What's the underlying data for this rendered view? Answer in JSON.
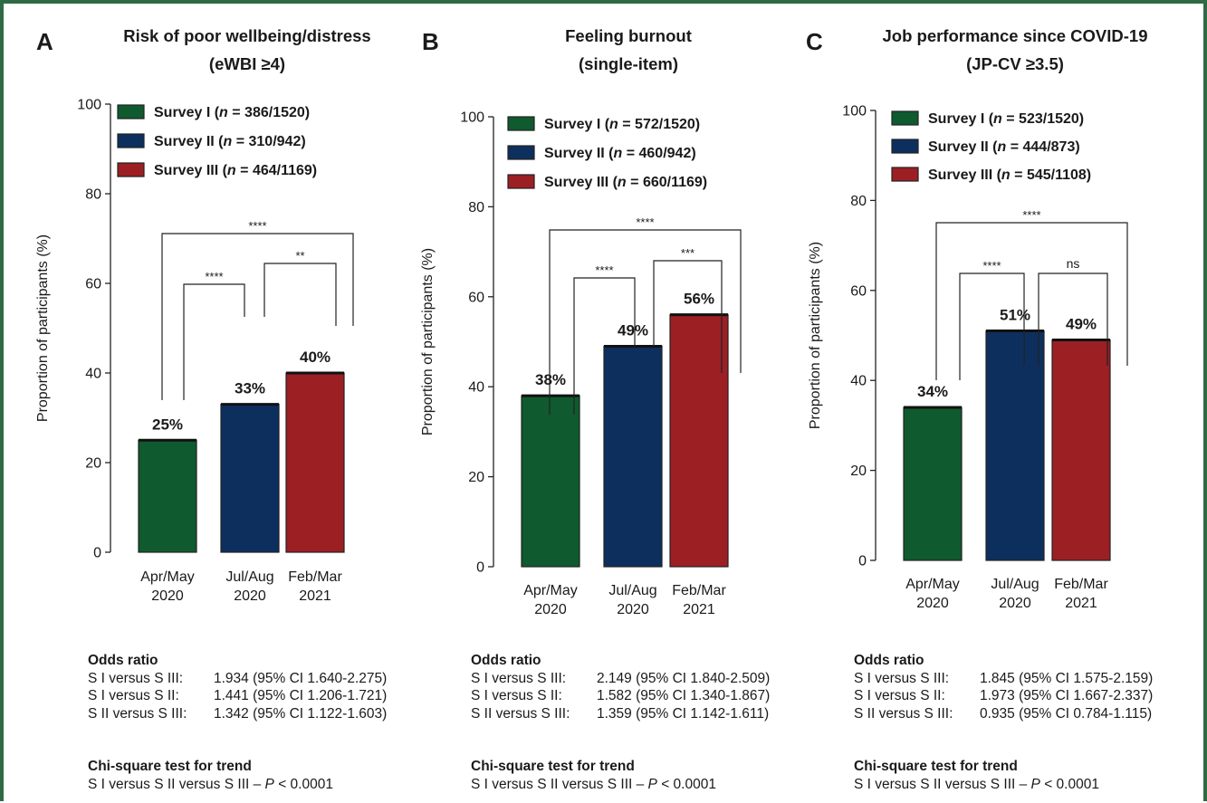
{
  "colors": {
    "survey1": "#0f5a2e",
    "survey2": "#0d2f5e",
    "survey3": "#9c1f24",
    "frame": "#2e6b45"
  },
  "panels": [
    {
      "letter": "A",
      "title_line1": "Risk of poor wellbeing/distress",
      "title_line2": "(eWBI ≥4)",
      "legend": [
        {
          "prefix": "Survey I (",
          "n": "n",
          "suffix": " = 386/1520)"
        },
        {
          "prefix": "Survey II (",
          "n": "n",
          "suffix": " = 310/942)"
        },
        {
          "prefix": "Survey III (",
          "n": "n",
          "suffix": " = 464/1169)"
        }
      ],
      "sig": [
        "****",
        "****",
        "**"
      ],
      "odds_title": "Odds ratio",
      "odds": [
        {
          "cmp": "S I versus S III:",
          "val": "1.934 (95% CI 1.640-2.275)"
        },
        {
          "cmp": "S I versus S II:",
          "val": "1.441 (95% CI 1.206-1.721)"
        },
        {
          "cmp": "S II versus S III:",
          "val": "1.342 (95% CI 1.122-1.603)"
        }
      ],
      "chi_title": "Chi-square test for trend",
      "chi_prefix": "S I versus S II versus S III – ",
      "chi_p": "P",
      "chi_suffix": " < 0.0001"
    },
    {
      "letter": "B",
      "title_line1": "Feeling burnout",
      "title_line2": "(single-item)",
      "legend": [
        {
          "prefix": "Survey I (",
          "n": "n",
          "suffix": " = 572/1520)"
        },
        {
          "prefix": "Survey II (",
          "n": "n",
          "suffix": " = 460/942)"
        },
        {
          "prefix": "Survey III (",
          "n": "n",
          "suffix": " = 660/1169)"
        }
      ],
      "sig": [
        "****",
        "****",
        "***"
      ],
      "odds_title": "Odds ratio",
      "odds": [
        {
          "cmp": "S I versus S III:",
          "val": "2.149 (95% CI 1.840-2.509)"
        },
        {
          "cmp": "S I versus S II:",
          "val": "1.582 (95% CI 1.340-1.867)"
        },
        {
          "cmp": "S II versus S III:",
          "val": "1.359 (95% CI 1.142-1.611)"
        }
      ],
      "chi_title": "Chi-square test for trend",
      "chi_prefix": "S I versus S II versus S III – ",
      "chi_p": "P",
      "chi_suffix": " < 0.0001"
    },
    {
      "letter": "C",
      "title_line1": "Job performance since COVID-19",
      "title_line2": "(JP-CV ≥3.5)",
      "legend": [
        {
          "prefix": "Survey I (",
          "n": "n",
          "suffix": " = 523/1520)"
        },
        {
          "prefix": "Survey II (",
          "n": "n",
          "suffix": " = 444/873)"
        },
        {
          "prefix": "Survey III (",
          "n": "n",
          "suffix": " = 545/1108)"
        }
      ],
      "sig": [
        "****",
        "****",
        "ns"
      ],
      "odds_title": "Odds ratio",
      "odds": [
        {
          "cmp": "S I versus S III:",
          "val": "1.845 (95% CI 1.575-2.159)"
        },
        {
          "cmp": "S I versus S II:",
          "val": "1.973 (95% CI 1.667-2.337)"
        },
        {
          "cmp": "S II versus S III:",
          "val": "0.935 (95% CI 0.784-1.115)"
        }
      ],
      "chi_title": "Chi-square test for trend",
      "chi_prefix": "S I versus S II versus S III – ",
      "chi_p": "P",
      "chi_suffix": " < 0.0001"
    }
  ],
  "chart_data": [
    {
      "type": "bar",
      "title": "Risk of poor wellbeing/distress (eWBI ≥4)",
      "categories": [
        [
          "Apr/May",
          "2020"
        ],
        [
          "Jul/Aug",
          "2020"
        ],
        [
          "Feb/Mar",
          "2021"
        ]
      ],
      "values": [
        25,
        33,
        40
      ],
      "value_labels": [
        "25%",
        "33%",
        "40%"
      ],
      "ylabel": "Proportion of participants (%)",
      "ylim": [
        0,
        100
      ],
      "yticks": [
        0,
        20,
        40,
        60,
        80,
        100
      ],
      "legend_position": "top-left",
      "grid": false
    },
    {
      "type": "bar",
      "title": "Feeling burnout (single-item)",
      "categories": [
        [
          "Apr/May",
          "2020"
        ],
        [
          "Jul/Aug",
          "2020"
        ],
        [
          "Feb/Mar",
          "2021"
        ]
      ],
      "values": [
        38,
        49,
        56
      ],
      "value_labels": [
        "38%",
        "49%",
        "56%"
      ],
      "ylabel": "Proportion of participants (%)",
      "ylim": [
        0,
        100
      ],
      "yticks": [
        0,
        20,
        40,
        60,
        80,
        100
      ],
      "legend_position": "top-left",
      "grid": false
    },
    {
      "type": "bar",
      "title": "Job performance since COVID-19 (JP-CV ≥3.5)",
      "categories": [
        [
          "Apr/May",
          "2020"
        ],
        [
          "Jul/Aug",
          "2020"
        ],
        [
          "Feb/Mar",
          "2021"
        ]
      ],
      "values": [
        34,
        51,
        49
      ],
      "value_labels": [
        "34%",
        "51%",
        "49%"
      ],
      "ylabel": "Proportion of participants (%)",
      "ylim": [
        0,
        100
      ],
      "yticks": [
        0,
        20,
        40,
        60,
        80,
        100
      ],
      "legend_position": "top-left",
      "grid": false
    }
  ]
}
